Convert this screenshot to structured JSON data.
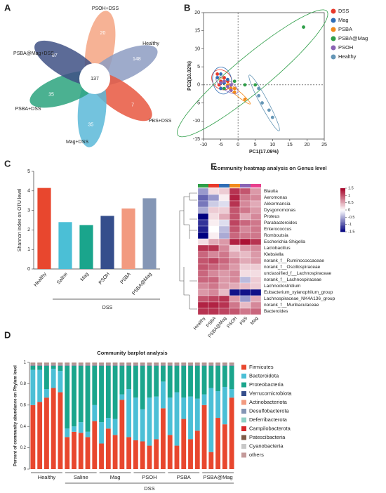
{
  "panels": [
    "A",
    "B",
    "C",
    "D",
    "E"
  ],
  "venn": {
    "core": 137,
    "sets": [
      {
        "name": "PSOH+DSS",
        "count": 20,
        "color": "#f4a582"
      },
      {
        "name": "Healthy",
        "count": 148,
        "color": "#8d9cc2"
      },
      {
        "name": "PBS+DSS",
        "count": 7,
        "color": "#e8573f"
      },
      {
        "name": "Mag+DSS",
        "count": 35,
        "color": "#5bb8d8"
      },
      {
        "name": "PSBA+DSS",
        "count": 35,
        "color": "#2ba37e"
      },
      {
        "name": "PSBA@Mag+DSS",
        "count": 87,
        "color": "#3f5185"
      }
    ]
  },
  "chart_data": [
    {
      "type": "scatter",
      "x_label": "PC1(17.09%)",
      "y_label": "PC2(10.02%)",
      "xlim": [
        -10,
        25
      ],
      "ylim": [
        -15,
        20
      ],
      "xticks": [
        -10,
        -5,
        0,
        5,
        10,
        15,
        20,
        25
      ],
      "yticks": [
        -15,
        -10,
        -5,
        0,
        5,
        10,
        15,
        20
      ],
      "series": [
        {
          "name": "DSS",
          "color": "#e8392b",
          "x": [
            -6,
            -5,
            -4,
            -5.5,
            -3
          ],
          "y": [
            3,
            1,
            2,
            0,
            1
          ]
        },
        {
          "name": "Mag",
          "color": "#2f6db5",
          "x": [
            -6,
            -5,
            -4,
            -3,
            -5
          ],
          "y": [
            2,
            3,
            0.5,
            1.5,
            -1
          ]
        },
        {
          "name": "PSBA",
          "color": "#f28a1c",
          "x": [
            -3,
            -2,
            -1,
            2,
            -1
          ],
          "y": [
            0,
            -1,
            -2,
            -4,
            -1
          ]
        },
        {
          "name": "PSBA@Mag",
          "color": "#2e9e48",
          "x": [
            19,
            -1,
            2,
            5,
            -4
          ],
          "y": [
            16,
            1,
            0,
            0,
            -1
          ]
        },
        {
          "name": "PSOH",
          "color": "#8a63b4",
          "x": [
            -5,
            -3,
            -2,
            -4,
            -2
          ],
          "y": [
            0.5,
            -0.5,
            -1.5,
            1,
            0
          ]
        },
        {
          "name": "Healthy",
          "color": "#6596b6",
          "x": [
            6,
            7,
            9,
            10,
            6
          ],
          "y": [
            -1,
            -5,
            -7,
            -9,
            -3
          ]
        }
      ]
    },
    {
      "type": "bar",
      "y_label": "Shannon index on OTU level",
      "group_label": "DSS",
      "categories": [
        "Healthy",
        "Saline",
        "Mag",
        "PSOH",
        "PSBA",
        "PSBA@Mag"
      ],
      "values": [
        4.15,
        2.4,
        2.25,
        2.72,
        3.1,
        3.62
      ],
      "colors": [
        "#e8472e",
        "#4bbfd6",
        "#1aa58c",
        "#354e8c",
        "#f29a80",
        "#8496b5"
      ],
      "ylim": [
        0,
        5
      ],
      "yticks": [
        0,
        1,
        2,
        3,
        4,
        5
      ]
    },
    {
      "type": "stacked_bar",
      "title": "Community barplot analysis",
      "y_label": "Percent of community abundance on Phylum level",
      "groups": [
        "Healthy",
        "Saline",
        "Mag",
        "PSOH",
        "PSBA",
        "PSBA@Mag"
      ],
      "group_label": "DSS",
      "ylim": [
        0,
        1
      ],
      "yticks": [
        0,
        0.2,
        0.4,
        0.6,
        0.8,
        1
      ],
      "series": [
        {
          "name": "Firmicutes",
          "color": "#e8472e",
          "values": [
            0.6,
            0.63,
            0.67,
            0.76,
            0.72,
            0.3,
            0.35,
            0.34,
            0.3,
            0.45,
            0.24,
            0.38,
            0.32,
            0.65,
            0.3,
            0.27,
            0.26,
            0.22,
            0.28,
            0.57,
            0.32,
            0.22,
            0.47,
            0.28,
            0.36,
            0.6,
            0.16,
            0.48,
            0.42,
            0.67
          ]
        },
        {
          "name": "Bacteroidota",
          "color": "#4bbfd6",
          "values": [
            0.33,
            0.3,
            0.08,
            0.18,
            0.2,
            0.08,
            0.05,
            0.1,
            0.05,
            0.15,
            0.2,
            0.1,
            0.15,
            0.05,
            0.45,
            0.4,
            0.3,
            0.45,
            0.4,
            0.25,
            0.35,
            0.5,
            0.2,
            0.4,
            0.3,
            0.1,
            0.6,
            0.25,
            0.35,
            0.08
          ]
        },
        {
          "name": "Proteobacteria",
          "color": "#1aa58c",
          "values": [
            0.038,
            0.038,
            0.218,
            0.028,
            0.048,
            0.588,
            0.568,
            0.528,
            0.618,
            0.368,
            0.528,
            0.488,
            0.498,
            0.268,
            0.218,
            0.298,
            0.408,
            0.298,
            0.288,
            0.148,
            0.298,
            0.248,
            0.298,
            0.288,
            0.308,
            0.268,
            0.208,
            0.238,
            0.198,
            0.218
          ]
        },
        {
          "name": "Verrucomicrobiota",
          "color": "#354e8c",
          "values": [
            0.004,
            0.004,
            0.004,
            0.004,
            0.004,
            0.004,
            0.004,
            0.004,
            0.004,
            0.004,
            0.004,
            0.004,
            0.004,
            0.004,
            0.004,
            0.004,
            0.004,
            0.004,
            0.004,
            0.004,
            0.004,
            0.004,
            0.004,
            0.004,
            0.004,
            0.004,
            0.004,
            0.004,
            0.004,
            0.004
          ]
        },
        {
          "name": "Actinobacteriota",
          "color": "#f29a80",
          "values": [
            0.004,
            0.004,
            0.004,
            0.004,
            0.004,
            0.004,
            0.004,
            0.004,
            0.004,
            0.004,
            0.004,
            0.004,
            0.004,
            0.004,
            0.004,
            0.004,
            0.004,
            0.004,
            0.004,
            0.004,
            0.004,
            0.004,
            0.004,
            0.004,
            0.004,
            0.004,
            0.004,
            0.004,
            0.004,
            0.004
          ]
        },
        {
          "name": "Desulfobacterota",
          "color": "#8496b5",
          "values": [
            0.004,
            0.004,
            0.004,
            0.004,
            0.004,
            0.004,
            0.004,
            0.004,
            0.004,
            0.004,
            0.004,
            0.004,
            0.004,
            0.004,
            0.004,
            0.004,
            0.004,
            0.004,
            0.004,
            0.004,
            0.004,
            0.004,
            0.004,
            0.004,
            0.004,
            0.004,
            0.004,
            0.004,
            0.004,
            0.004
          ]
        },
        {
          "name": "Deferribacterota",
          "color": "#8fd1c6",
          "values": [
            0.004,
            0.004,
            0.004,
            0.004,
            0.004,
            0.004,
            0.004,
            0.004,
            0.004,
            0.004,
            0.004,
            0.004,
            0.004,
            0.004,
            0.004,
            0.004,
            0.004,
            0.004,
            0.004,
            0.004,
            0.004,
            0.004,
            0.004,
            0.004,
            0.004,
            0.004,
            0.004,
            0.004,
            0.004,
            0.004
          ]
        },
        {
          "name": "Campilobacterota",
          "color": "#d62728",
          "values": [
            0.004,
            0.004,
            0.004,
            0.004,
            0.004,
            0.004,
            0.004,
            0.004,
            0.004,
            0.004,
            0.004,
            0.004,
            0.004,
            0.004,
            0.004,
            0.004,
            0.004,
            0.004,
            0.004,
            0.004,
            0.004,
            0.004,
            0.004,
            0.004,
            0.004,
            0.004,
            0.004,
            0.004,
            0.004,
            0.004
          ]
        },
        {
          "name": "Patescibacteria",
          "color": "#7e5b48",
          "values": [
            0.004,
            0.004,
            0.004,
            0.004,
            0.004,
            0.004,
            0.004,
            0.004,
            0.004,
            0.004,
            0.004,
            0.004,
            0.004,
            0.004,
            0.004,
            0.004,
            0.004,
            0.004,
            0.004,
            0.004,
            0.004,
            0.004,
            0.004,
            0.004,
            0.004,
            0.004,
            0.004,
            0.004,
            0.004,
            0.004
          ]
        },
        {
          "name": "Cyanobacteria",
          "color": "#c8c8c8",
          "values": [
            0.004,
            0.004,
            0.004,
            0.004,
            0.004,
            0.004,
            0.004,
            0.004,
            0.004,
            0.004,
            0.004,
            0.004,
            0.004,
            0.004,
            0.004,
            0.004,
            0.004,
            0.004,
            0.004,
            0.004,
            0.004,
            0.004,
            0.004,
            0.004,
            0.004,
            0.004,
            0.004,
            0.004,
            0.004,
            0.004
          ]
        },
        {
          "name": "others",
          "color": "#c49a9a",
          "values": [
            0.004,
            0.004,
            0.004,
            0.004,
            0.004,
            0.004,
            0.004,
            0.004,
            0.004,
            0.004,
            0.004,
            0.004,
            0.004,
            0.004,
            0.004,
            0.004,
            0.004,
            0.004,
            0.004,
            0.004,
            0.004,
            0.004,
            0.004,
            0.004,
            0.004,
            0.004,
            0.004,
            0.004,
            0.004,
            0.004
          ]
        }
      ]
    },
    {
      "type": "heatmap",
      "title": "Community heatmap analysis on Genus level",
      "columns": [
        "Healthy",
        "PSBA",
        "PSBA@Mag",
        "PSOH",
        "PBS",
        "Mag"
      ],
      "column_colors": [
        "#2e9e48",
        "#e8392b",
        "#2f6db5",
        "#f28a1c",
        "#8a63b4",
        "#e83e8c"
      ],
      "rows": [
        "Blautia",
        "Aeromonas",
        "Akkermansia",
        "Dysgonomonas",
        "Proteus",
        "Parabacteroides",
        "Enterococcus",
        "Romboutsia",
        "Escherichia-Shigella",
        "Lactobacillus",
        "Klebsiella",
        "norank_f__Ruminococcaceae",
        "norank_f__Oscillospiraceae",
        "unclassified_f__Lachnospiraceae",
        "norank_f__Lachnospiraceae",
        "Lachnoclostridium",
        "Eubacterium_xylanophilum_group",
        "Lachnospiraceae_NK4A136_group",
        "norank_f__Muribaculaceae",
        "Bacteroides"
      ],
      "values": [
        [
          -0.6,
          0.2,
          0.3,
          1.2,
          1.0,
          0.6
        ],
        [
          -0.9,
          -0.6,
          0.1,
          1.3,
          0.8,
          0.7
        ],
        [
          -0.8,
          -0.3,
          -0.2,
          1.2,
          0.7,
          0.5
        ],
        [
          -0.5,
          0.3,
          0.3,
          1.0,
          0.8,
          0.6
        ],
        [
          -1.5,
          0.2,
          0.5,
          1.0,
          0.5,
          0.7
        ],
        [
          -1.2,
          0.1,
          -0.2,
          1.1,
          0.9,
          0.8
        ],
        [
          -1.3,
          0.0,
          -0.4,
          1.0,
          0.7,
          0.8
        ],
        [
          -1.5,
          0.1,
          -0.5,
          0.9,
          0.8,
          0.8
        ],
        [
          0.2,
          0.5,
          0.6,
          1.3,
          1.4,
          1.2
        ],
        [
          1.2,
          1.2,
          0.7,
          0.3,
          0.6,
          0.7
        ],
        [
          0.9,
          0.7,
          0.8,
          0.5,
          0.4,
          0.6
        ],
        [
          1.0,
          1.1,
          0.9,
          0.7,
          0.5,
          0.6
        ],
        [
          1.0,
          0.9,
          0.8,
          0.6,
          0.3,
          0.3
        ],
        [
          0.9,
          0.7,
          0.6,
          0.7,
          0.2,
          0.2
        ],
        [
          0.9,
          0.9,
          0.6,
          0.7,
          -0.4,
          0.3
        ],
        [
          0.7,
          0.8,
          0.6,
          0.5,
          0.4,
          0.3
        ],
        [
          0.6,
          0.7,
          0.4,
          -1.4,
          -1.4,
          -1.4
        ],
        [
          1.0,
          1.1,
          1.2,
          0.6,
          -0.6,
          0.5
        ],
        [
          1.3,
          1.3,
          1.2,
          0.8,
          0.4,
          0.7
        ],
        [
          1.2,
          1.2,
          1.1,
          1.0,
          0.8,
          0.9
        ]
      ],
      "clim": [
        -1.5,
        1.5
      ],
      "cticks": [
        -1.5,
        -1,
        -0.5,
        0,
        0.5,
        1,
        1.5
      ],
      "colors": [
        "#00007f",
        "#ffffff",
        "#a50026"
      ]
    }
  ]
}
